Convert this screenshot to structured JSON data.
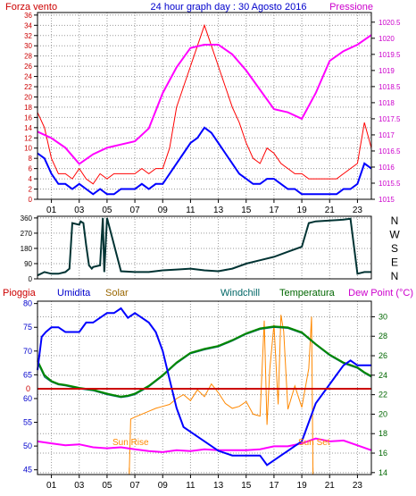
{
  "colors": {
    "background": "#ffffff",
    "frame": "#000000",
    "wind": "#ff0000",
    "gust_blue": "#0000ff",
    "pressure": "#ff00ff",
    "direction": "#003333",
    "humidity": "#0000ff",
    "solar": "#ff8800",
    "windchill": "#006666",
    "temperature": "#008800",
    "dewpoint": "#ff00ff",
    "rain_line": "#cc0000"
  },
  "chart_data": [
    {
      "type": "line",
      "title": "24 hour graph day : 30 Agosto 2016",
      "left_label": "Forza vento",
      "right_label": "Pressione",
      "x_ticks": [
        "01",
        "03",
        "05",
        "07",
        "09",
        "11",
        "13",
        "15",
        "17",
        "19",
        "21",
        "23"
      ],
      "y_left_ticks": [
        "0",
        "2",
        "4",
        "6",
        "8",
        "10",
        "12",
        "14",
        "16",
        "18",
        "20",
        "22",
        "24",
        "26",
        "28",
        "30",
        "32",
        "34",
        "36"
      ],
      "y_right_ticks": [
        "1015",
        "1015.5",
        "1016",
        "1016.5",
        "1017",
        "1017.5",
        "1018",
        "1018.5",
        "1019",
        "1019.5",
        "1020",
        "1020.5"
      ],
      "ylim_left": [
        0,
        36.5
      ],
      "ylim_right": [
        1015,
        1020.8
      ],
      "xlim": [
        0,
        24
      ],
      "series": [
        {
          "key": "wind_max",
          "x": [
            0,
            0.5,
            1,
            1.5,
            2,
            2.5,
            3,
            3.5,
            4,
            4.5,
            5,
            5.5,
            6,
            6.5,
            7,
            7.5,
            8,
            8.5,
            9,
            9.5,
            10,
            10.5,
            11,
            11.5,
            12,
            12.5,
            13,
            13.5,
            14,
            14.5,
            15,
            15.5,
            16,
            16.5,
            17,
            17.5,
            18,
            18.5,
            19,
            19.5,
            20,
            20.5,
            21,
            21.5,
            22,
            22.5,
            23,
            23.5,
            24
          ],
          "values": [
            17,
            14,
            8,
            5,
            5,
            4,
            6,
            4,
            3,
            5,
            4,
            5,
            5,
            5,
            5,
            6,
            5,
            6,
            6,
            10,
            18,
            22,
            26,
            30,
            34,
            30,
            26,
            22,
            18,
            15,
            11,
            8,
            7,
            10,
            9,
            7,
            6,
            5,
            5,
            4,
            4,
            4,
            4,
            4,
            5,
            6,
            7,
            15,
            10
          ]
        },
        {
          "key": "wind_avg",
          "x": [
            0,
            0.5,
            1,
            1.5,
            2,
            2.5,
            3,
            3.5,
            4,
            4.5,
            5,
            5.5,
            6,
            6.5,
            7,
            7.5,
            8,
            8.5,
            9,
            9.5,
            10,
            10.5,
            11,
            11.5,
            12,
            12.5,
            13,
            13.5,
            14,
            14.5,
            15,
            15.5,
            16,
            16.5,
            17,
            17.5,
            18,
            18.5,
            19,
            19.5,
            20,
            20.5,
            21,
            21.5,
            22,
            22.5,
            23,
            23.5,
            24
          ],
          "values": [
            9,
            8,
            5,
            3,
            3,
            2,
            3,
            2,
            1,
            2,
            1,
            1,
            2,
            2,
            2,
            3,
            2,
            3,
            3,
            5,
            7,
            9,
            11,
            12,
            14,
            13,
            11,
            9,
            7,
            5,
            4,
            3,
            3,
            4,
            4,
            3,
            2,
            2,
            1,
            1,
            1,
            1,
            1,
            1,
            2,
            2,
            3,
            7,
            6
          ]
        },
        {
          "key": "pressure",
          "x": [
            0,
            1,
            2,
            3,
            4,
            5,
            6,
            7,
            8,
            9,
            10,
            11,
            12,
            13,
            14,
            15,
            16,
            17,
            18,
            19,
            20,
            21,
            22,
            23,
            24
          ],
          "values": [
            1017.1,
            1016.9,
            1016.6,
            1016.1,
            1016.4,
            1016.6,
            1016.7,
            1016.8,
            1017.2,
            1018.3,
            1019.1,
            1019.7,
            1019.8,
            1019.8,
            1019.5,
            1019.0,
            1018.4,
            1017.8,
            1017.7,
            1017.5,
            1018.3,
            1019.3,
            1019.6,
            1019.8,
            1020.1
          ]
        }
      ]
    },
    {
      "type": "line",
      "direction_labels": [
        "N",
        "W",
        "S",
        "E",
        "N"
      ],
      "y_ticks": [
        "0",
        "90",
        "180",
        "270",
        "360"
      ],
      "ylim": [
        0,
        370
      ],
      "xlim": [
        0,
        24
      ],
      "x_ticks": [
        "01",
        "03",
        "05",
        "07",
        "09",
        "11",
        "13",
        "15",
        "17",
        "19",
        "21",
        "23"
      ],
      "series": [
        {
          "key": "wind_dir",
          "x": [
            0,
            0.5,
            1,
            1.5,
            2,
            2.3,
            2.5,
            3,
            3.1,
            3.3,
            3.5,
            3.7,
            3.9,
            4,
            4.5,
            4.7,
            4.8,
            5,
            6,
            7,
            8,
            9,
            10,
            11,
            12,
            13,
            14,
            15,
            16,
            17,
            18,
            19,
            19.5,
            20,
            21,
            22,
            22.5,
            23,
            23.5,
            24
          ],
          "values": [
            20,
            40,
            30,
            30,
            40,
            60,
            330,
            320,
            340,
            330,
            200,
            80,
            60,
            70,
            80,
            360,
            40,
            360,
            45,
            40,
            40,
            50,
            55,
            60,
            50,
            45,
            60,
            90,
            110,
            130,
            160,
            190,
            330,
            340,
            345,
            350,
            355,
            30,
            40,
            40
          ]
        }
      ]
    },
    {
      "type": "line",
      "labels": {
        "rain": "Pioggia",
        "humidity": "Umidita",
        "solar": "Solar",
        "windchill": "Windchill",
        "temperature": "Temperatura",
        "dewpoint": "Dew Point (°C)",
        "sunrise": "Sun Rise",
        "sunset": "Sun Set",
        "rain_zero": "0"
      },
      "x_ticks": [
        "01",
        "03",
        "05",
        "07",
        "09",
        "11",
        "13",
        "15",
        "17",
        "19",
        "21",
        "23"
      ],
      "y_left_ticks": [
        "45",
        "50",
        "55",
        "60",
        "65",
        "70",
        "75",
        "80"
      ],
      "y_right_ticks": [
        "14",
        "16",
        "18",
        "20",
        "22",
        "24",
        "26",
        "28",
        "30"
      ],
      "ylim_left": [
        44,
        80.5
      ],
      "ylim_right": [
        13.8,
        31.6
      ],
      "xlim": [
        0,
        24
      ],
      "rain_value": 0,
      "sunrise_hour": 6.6,
      "sunset_hour": 19.8,
      "series": [
        {
          "key": "humidity",
          "x": [
            0,
            0.3,
            0.6,
            1,
            1.5,
            2,
            3,
            3.5,
            4,
            4.5,
            5,
            5.5,
            6,
            6.5,
            7,
            7.5,
            8,
            8.5,
            9,
            9.5,
            10,
            10.5,
            11,
            12,
            13,
            14,
            15,
            16,
            16.5,
            17,
            17.5,
            18,
            18.5,
            19,
            19.5,
            20,
            20.5,
            21,
            21.5,
            22,
            22.5,
            23,
            23.5,
            24
          ],
          "values": [
            66,
            73,
            74,
            75,
            75,
            74,
            74,
            76,
            76,
            77,
            78,
            78,
            79,
            77,
            78,
            77,
            76,
            74,
            70,
            64,
            58,
            54,
            53,
            51,
            49,
            48,
            48,
            48,
            46,
            47,
            48,
            49,
            50,
            51,
            55,
            59,
            61,
            63,
            65,
            67,
            68,
            67,
            67,
            67
          ]
        },
        {
          "key": "temperature",
          "x": [
            0,
            0.5,
            1,
            1.5,
            2,
            3,
            4,
            5,
            6,
            6.5,
            7,
            8,
            9,
            10,
            11,
            12,
            13,
            14,
            15,
            16,
            17,
            18,
            19,
            20,
            21,
            22,
            23,
            23.5,
            24
          ],
          "values": [
            25.5,
            24,
            23.4,
            23.1,
            23.0,
            22.7,
            22.5,
            22.1,
            21.8,
            21.9,
            22.1,
            22.9,
            24.0,
            25.3,
            26.3,
            26.7,
            27.0,
            27.6,
            28.3,
            28.8,
            29.0,
            28.9,
            28.4,
            27.2,
            26.1,
            25.3,
            24.8,
            24.3,
            23.9
          ]
        },
        {
          "key": "dewpoint",
          "x": [
            0,
            1,
            2,
            3,
            4,
            5,
            6,
            7,
            8,
            9,
            10,
            11,
            12,
            13,
            14,
            15,
            16,
            17,
            18,
            19,
            20,
            21,
            22,
            23,
            24
          ],
          "values": [
            17.2,
            17.0,
            16.8,
            16.9,
            16.6,
            16.5,
            16.6,
            16.4,
            16.2,
            16.1,
            16.3,
            16.2,
            16.4,
            16.3,
            16.3,
            16.3,
            16.4,
            16.7,
            16.7,
            17.0,
            17.5,
            17.2,
            17.3,
            16.8,
            16.3
          ]
        },
        {
          "key": "windchill",
          "x": [
            0,
            0.5,
            1,
            1.5,
            2,
            3,
            4,
            5,
            6,
            6.5,
            7,
            8,
            9,
            10,
            11,
            12,
            13,
            14,
            15,
            16,
            17,
            18,
            19,
            20,
            21,
            22,
            23,
            23.5,
            24
          ],
          "values": [
            25.3,
            23.8,
            23.3,
            23.0,
            22.9,
            22.6,
            22.4,
            22.0,
            21.7,
            21.8,
            22.0,
            22.8,
            23.9,
            25.2,
            26.2,
            26.6,
            26.9,
            27.5,
            28.2,
            28.7,
            28.9,
            28.8,
            28.3,
            27.1,
            26.0,
            25.2,
            24.7,
            24.2,
            23.8
          ]
        },
        {
          "key": "solar",
          "x": [
            6.6,
            6.7,
            7,
            7.5,
            8,
            8.5,
            9,
            9.5,
            10,
            10.5,
            11,
            11.5,
            12,
            12.5,
            13,
            13.5,
            14,
            14.5,
            15,
            15.5,
            16,
            16.3,
            16.5,
            16.7,
            17,
            17.3,
            17.5,
            17.7,
            18,
            18.5,
            19,
            19.5,
            19.7,
            19.8
          ],
          "values": [
            14,
            19.5,
            19.7,
            20.0,
            20.3,
            20.6,
            20.8,
            21.0,
            21.6,
            22.0,
            21.4,
            22.5,
            21.8,
            23.1,
            22.2,
            21.1,
            20.6,
            20.8,
            21.3,
            20.0,
            19.8,
            29.6,
            18.9,
            24.6,
            29.2,
            21.0,
            30.2,
            28.5,
            20.5,
            22.9,
            20.7,
            24.7,
            30.0,
            14
          ]
        }
      ]
    }
  ]
}
